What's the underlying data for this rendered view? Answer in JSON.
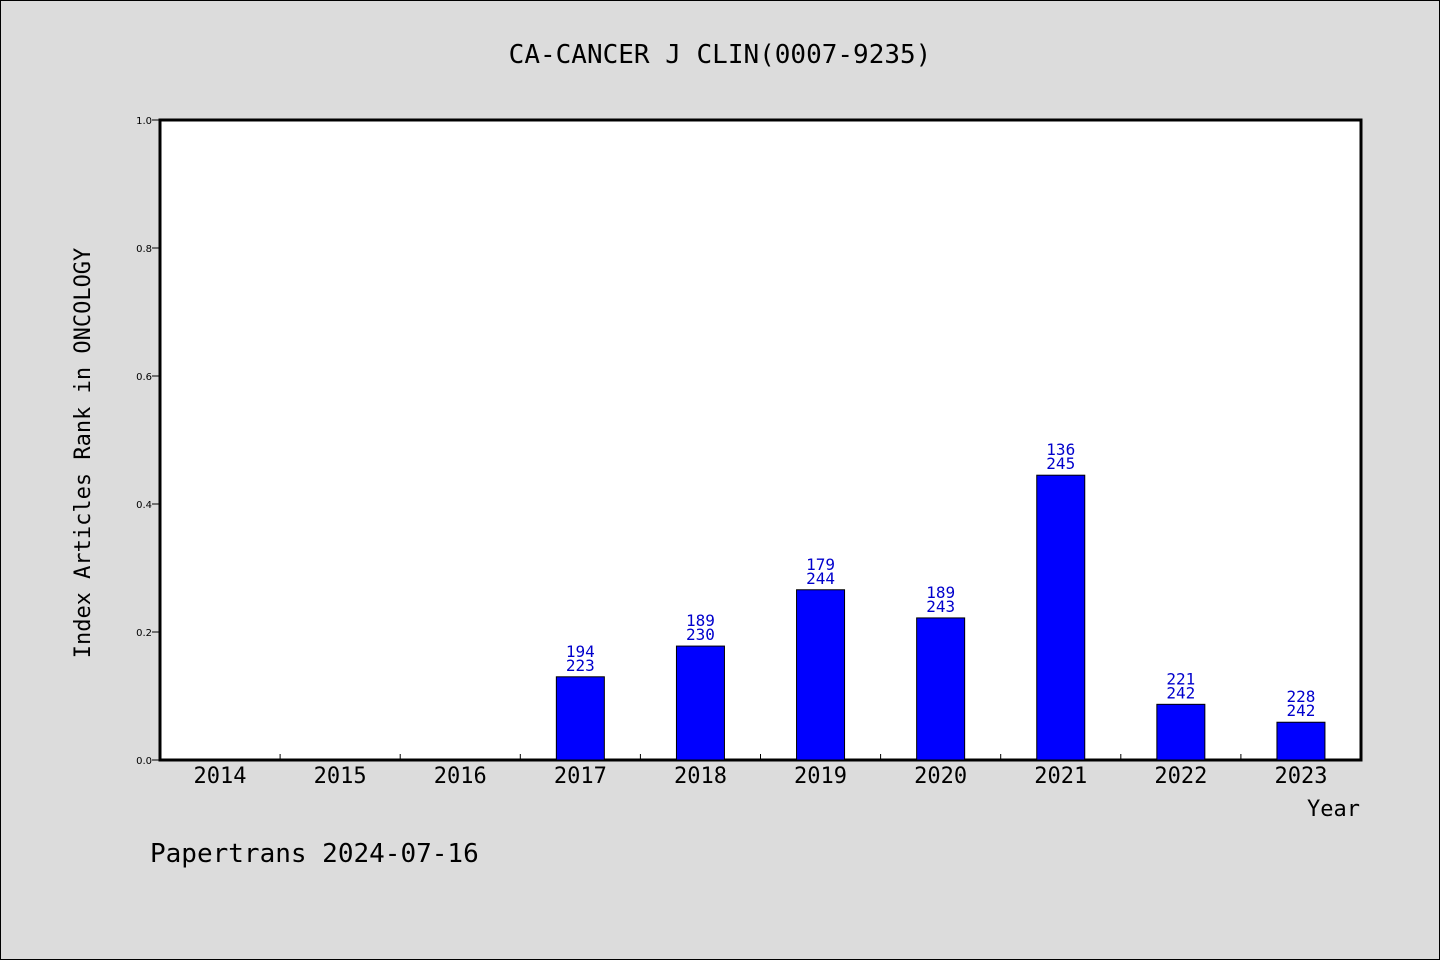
{
  "chart_data": {
    "type": "bar",
    "title": "CA-CANCER J CLIN(0007-9235)",
    "xlabel": "Year",
    "ylabel": "Index Articles Rank in ONCOLOGY",
    "ylim": [
      0,
      1.0
    ],
    "yticks": [
      "0.0",
      "0.2",
      "0.4",
      "0.6",
      "0.8",
      "1.0"
    ],
    "categories": [
      "2014",
      "2015",
      "2016",
      "2017",
      "2018",
      "2019",
      "2020",
      "2021",
      "2022",
      "2023"
    ],
    "values": [
      null,
      null,
      null,
      0.13,
      0.178,
      0.266,
      0.222,
      0.445,
      0.087,
      0.059
    ],
    "labels": [
      null,
      null,
      null,
      [
        "194",
        "223"
      ],
      [
        "189",
        "230"
      ],
      [
        "179",
        "244"
      ],
      [
        "189",
        "243"
      ],
      [
        "136",
        "245"
      ],
      [
        "221",
        "242"
      ],
      [
        "228",
        "242"
      ]
    ],
    "bar_color": "#0000ff",
    "label_color": "#0000cc",
    "grid": false
  },
  "footer": "Papertrans 2024-07-16"
}
